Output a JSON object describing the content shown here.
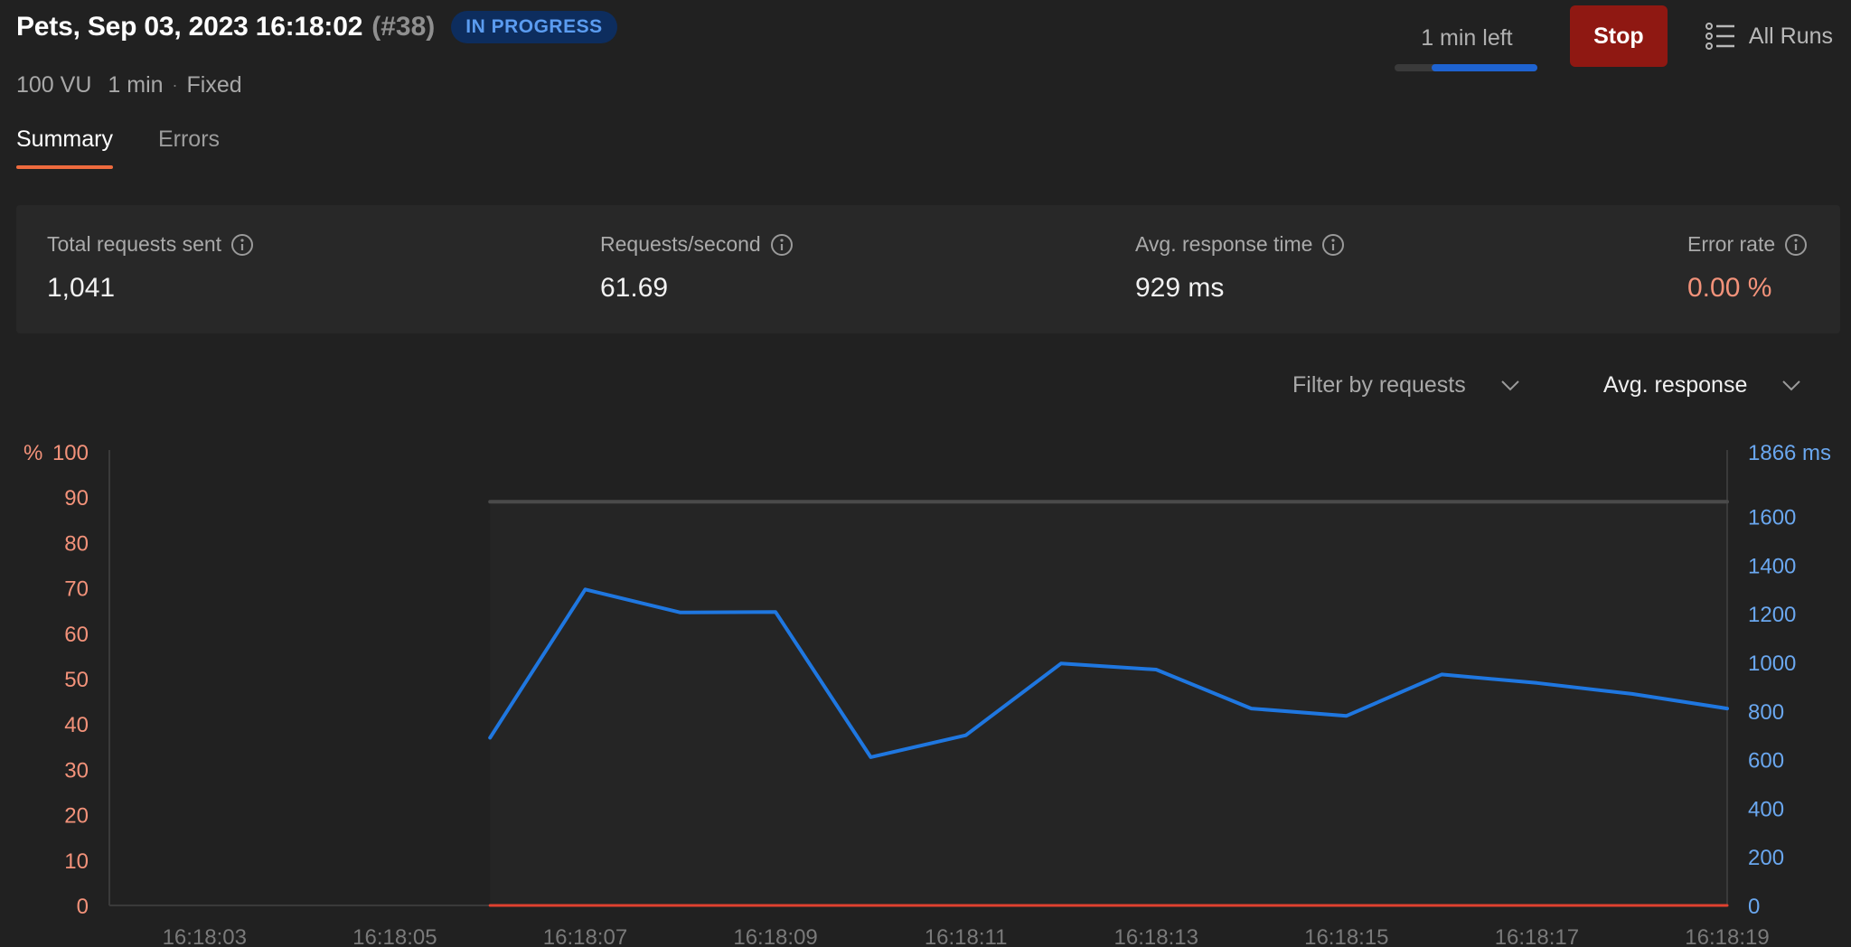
{
  "header": {
    "title": "Pets, Sep 03, 2023 16:18:02",
    "run_number": "(#38)",
    "status": "IN PROGRESS",
    "virtual_users": "100 VU",
    "duration": "1 min",
    "separator": "·",
    "load_profile": "Fixed"
  },
  "controls": {
    "time_left": "1 min left",
    "progress_fraction": 0.74,
    "stop_label": "Stop",
    "all_runs_label": "All Runs"
  },
  "tabs": [
    {
      "label": "Summary",
      "active": true
    },
    {
      "label": "Errors",
      "active": false
    }
  ],
  "stats": {
    "total_requests": {
      "label": "Total requests sent",
      "value": "1,041"
    },
    "requests_per_second": {
      "label": "Requests/second",
      "value": "61.69"
    },
    "avg_response_time": {
      "label": "Avg. response time",
      "value": "929 ms"
    },
    "error_rate": {
      "label": "Error rate",
      "value": "0.00 %"
    }
  },
  "filters": {
    "requests": "Filter by requests",
    "metric": "Avg. response"
  },
  "colors": {
    "accent": "#ef6b3e",
    "response_line": "#1f77e0",
    "error_line": "#e0412f",
    "vu_line": "#4a4a4a",
    "stop_button": "#8f1812"
  },
  "chart_data": {
    "type": "line",
    "x_ticks": [
      "16:18:03",
      "16:18:05",
      "16:18:07",
      "16:18:09",
      "16:18:11",
      "16:18:13",
      "16:18:15",
      "16:18:17",
      "16:18:19"
    ],
    "x_start": 2,
    "x_end": 19,
    "y_left": {
      "unit_label": "%",
      "ticks": [
        0,
        10,
        20,
        30,
        40,
        50,
        60,
        70,
        80,
        90,
        100
      ],
      "range": [
        0,
        100
      ]
    },
    "y_right": {
      "unit_label": "1866 ms",
      "ticks": [
        0,
        200,
        400,
        600,
        800,
        1000,
        1200,
        1400,
        1600
      ],
      "range": [
        0,
        1866
      ]
    },
    "series": [
      {
        "axis": "right",
        "x": [
          6,
          7,
          8,
          9,
          10,
          11,
          12,
          13,
          14,
          15,
          16,
          17,
          18,
          19
        ],
        "y": [
          690,
          1300,
          1205,
          1207,
          610,
          700,
          995,
          970,
          810,
          780,
          950,
          915,
          870,
          810
        ]
      },
      {
        "axis": "left",
        "x": [
          6,
          19
        ],
        "y": [
          89,
          89
        ]
      },
      {
        "axis": "left",
        "x": [
          6,
          19
        ],
        "y": [
          0,
          0
        ]
      }
    ]
  }
}
